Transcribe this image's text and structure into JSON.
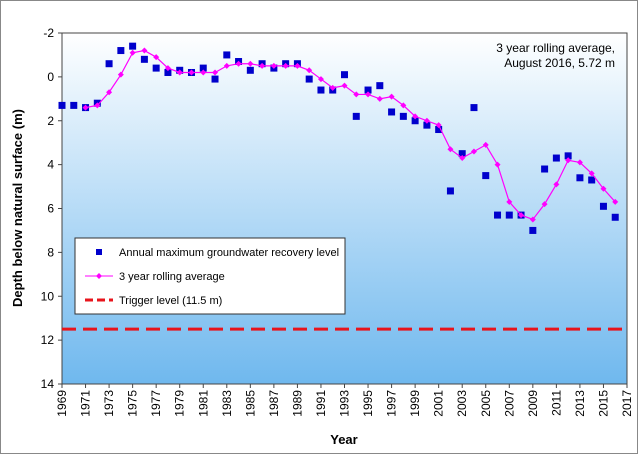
{
  "chart_data": {
    "type": "line",
    "x_label": "Year",
    "y_label": "Depth below natural surface (m)",
    "annotation": [
      "3 year rolling average,",
      "August 2016, 5.72 m"
    ],
    "xlim": [
      1969,
      2017
    ],
    "xticks": [
      1969,
      1971,
      1973,
      1975,
      1977,
      1979,
      1981,
      1983,
      1985,
      1987,
      1989,
      1991,
      1993,
      1995,
      1997,
      1999,
      2001,
      2003,
      2005,
      2007,
      2009,
      2011,
      2013,
      2015,
      2017
    ],
    "ylim": [
      -2,
      14
    ],
    "y_inverted": true,
    "yticks": [
      -2,
      0,
      2,
      4,
      6,
      8,
      10,
      12,
      14
    ],
    "legend_position": "lower left",
    "series": [
      {
        "name": "Annual maximum groundwater recovery level",
        "color": "#0000cc",
        "style": "square-markers",
        "x": [
          1969,
          1970,
          1971,
          1972,
          1973,
          1974,
          1975,
          1976,
          1977,
          1978,
          1979,
          1980,
          1981,
          1982,
          1983,
          1984,
          1985,
          1986,
          1987,
          1988,
          1989,
          1990,
          1991,
          1992,
          1993,
          1994,
          1995,
          1996,
          1997,
          1998,
          1999,
          2000,
          2001,
          2002,
          2003,
          2004,
          2005,
          2006,
          2007,
          2008,
          2009,
          2010,
          2011,
          2012,
          2013,
          2014,
          2015,
          2016
        ],
        "values": [
          1.3,
          1.3,
          1.4,
          1.2,
          -0.6,
          -1.2,
          -1.4,
          -0.8,
          -0.4,
          -0.2,
          -0.3,
          -0.2,
          -0.4,
          0.1,
          -1.0,
          -0.7,
          -0.3,
          -0.6,
          -0.4,
          -0.6,
          -0.6,
          0.1,
          0.6,
          0.6,
          -0.1,
          1.8,
          0.6,
          0.4,
          1.6,
          1.8,
          2.0,
          2.2,
          2.4,
          5.2,
          3.5,
          1.4,
          4.5,
          6.3,
          6.3,
          6.3,
          7.0,
          4.2,
          3.7,
          3.6,
          4.6,
          4.7,
          5.9,
          6.4
        ]
      },
      {
        "name": "3 year rolling average",
        "color": "#ff00ff",
        "style": "line-diamonds",
        "x": [
          1971,
          1972,
          1973,
          1974,
          1975,
          1976,
          1977,
          1978,
          1979,
          1980,
          1981,
          1982,
          1983,
          1984,
          1985,
          1986,
          1987,
          1988,
          1989,
          1990,
          1991,
          1992,
          1993,
          1994,
          1995,
          1996,
          1997,
          1998,
          1999,
          2000,
          2001,
          2002,
          2003,
          2004,
          2005,
          2006,
          2007,
          2008,
          2009,
          2010,
          2011,
          2012,
          2013,
          2014,
          2015,
          2016
        ],
        "values": [
          1.4,
          1.3,
          0.7,
          -0.1,
          -1.1,
          -1.2,
          -0.9,
          -0.4,
          -0.2,
          -0.2,
          -0.2,
          -0.2,
          -0.5,
          -0.6,
          -0.6,
          -0.5,
          -0.5,
          -0.5,
          -0.5,
          -0.3,
          0.1,
          0.5,
          0.4,
          0.8,
          0.8,
          1.0,
          0.9,
          1.3,
          1.8,
          2.0,
          2.2,
          3.3,
          3.7,
          3.4,
          3.1,
          4.0,
          5.7,
          6.3,
          6.5,
          5.8,
          4.9,
          3.8,
          3.9,
          4.4,
          5.1,
          5.7
        ]
      },
      {
        "name": "Trigger level (11.5 m)",
        "color": "#e8141c",
        "style": "dashed-line",
        "x": [
          1969,
          2017
        ],
        "values": [
          11.5,
          11.5
        ]
      }
    ]
  }
}
